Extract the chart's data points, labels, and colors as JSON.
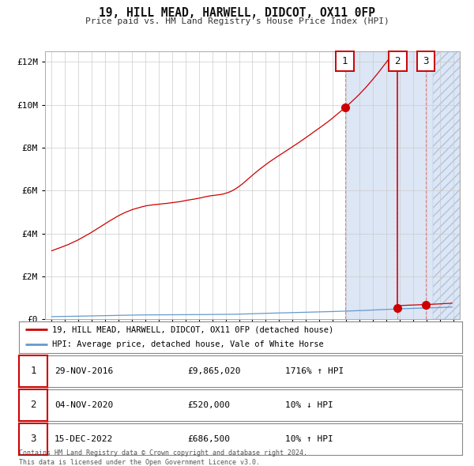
{
  "title": "19, HILL MEAD, HARWELL, DIDCOT, OX11 0FP",
  "subtitle": "Price paid vs. HM Land Registry's House Price Index (HPI)",
  "background_color": "#ffffff",
  "plot_bg_color": "#ffffff",
  "grid_color": "#cccccc",
  "hpi_color": "#6699cc",
  "price_color": "#cc0000",
  "sale1_date": 2016.916,
  "sale1_price": 9865020,
  "sale2_date": 2020.844,
  "sale2_price": 520000,
  "sale3_date": 2022.958,
  "sale3_price": 686500,
  "xmin": 1994.5,
  "xmax": 2025.5,
  "ymin": 0,
  "ymax": 12500000,
  "yticks": [
    0,
    2000000,
    4000000,
    6000000,
    8000000,
    10000000,
    12000000
  ],
  "ytick_labels": [
    "£0",
    "£2M",
    "£4M",
    "£6M",
    "£8M",
    "£10M",
    "£12M"
  ],
  "legend_line1": "19, HILL MEAD, HARWELL, DIDCOT, OX11 0FP (detached house)",
  "legend_line2": "HPI: Average price, detached house, Vale of White Horse",
  "table_rows": [
    [
      "1",
      "29-NOV-2016",
      "£9,865,020",
      "1716% ↑ HPI"
    ],
    [
      "2",
      "04-NOV-2020",
      "£520,000",
      "10% ↓ HPI"
    ],
    [
      "3",
      "15-DEC-2022",
      "£686,500",
      "10% ↑ HPI"
    ]
  ],
  "footnote": "Contains HM Land Registry data © Crown copyright and database right 2024.\nThis data is licensed under the Open Government Licence v3.0.",
  "shaded_region_start": 2016.916,
  "shaded_region_color": "#dce6f5",
  "hatch_region_start": 2023.5
}
